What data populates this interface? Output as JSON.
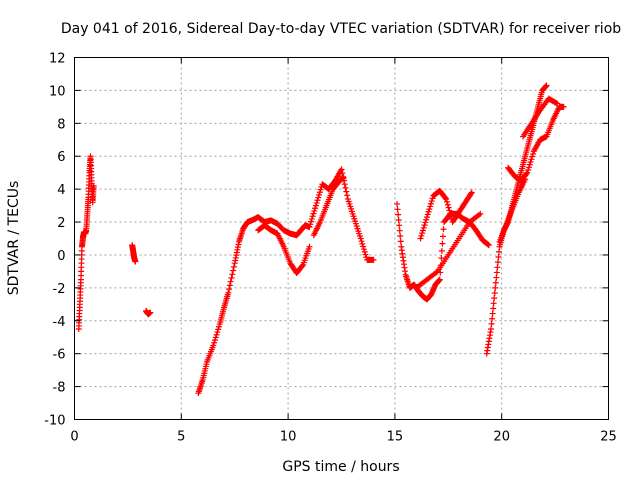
{
  "chart_data": {
    "type": "scatter",
    "title": "Day 041 of 2016, Sidereal Day-to-day VTEC variation (SDTVAR) for receiver riob",
    "xlabel": "GPS time / hours",
    "ylabel": "SDTVAR / TECUs",
    "xlim": [
      0,
      25
    ],
    "ylim": [
      -10,
      12
    ],
    "xticks": [
      0,
      5,
      10,
      15,
      20,
      25
    ],
    "yticks": [
      -10,
      -8,
      -6,
      -4,
      -2,
      0,
      2,
      4,
      6,
      8,
      10,
      12
    ],
    "xtick_labels": [
      "0",
      "5",
      "10",
      "15",
      "20",
      "25"
    ],
    "ytick_labels": [
      "-10",
      "-8",
      "-6",
      "-4",
      "-2",
      "0",
      "2",
      "4",
      "6",
      "8",
      "10",
      "12"
    ],
    "grid": true,
    "legend": "none",
    "marker": "+",
    "color": "#ff0000",
    "series": [
      {
        "x": [
          0.2,
          0.25,
          0.3,
          0.35,
          0.4,
          0.45,
          0.5,
          0.55,
          0.6,
          0.65,
          0.7,
          0.75,
          0.8,
          0.85,
          0.9
        ],
        "y": [
          -4.5,
          -3.0,
          -1.5,
          0.5,
          1.1,
          1.4,
          1.3,
          1.5,
          2.5,
          3.5,
          5.0,
          6.0,
          4.5,
          3.2,
          4.2
        ]
      },
      {
        "x": [
          2.7,
          2.75,
          2.8,
          2.85
        ],
        "y": [
          0.6,
          0.2,
          -0.2,
          -0.4
        ]
      },
      {
        "x": [
          3.35,
          3.45,
          3.55
        ],
        "y": [
          -3.4,
          -3.6,
          -3.5
        ]
      },
      {
        "x": [
          5.8,
          6.0,
          6.2,
          6.5,
          6.8,
          7.0,
          7.2,
          7.5,
          7.7,
          7.9,
          8.1,
          8.3,
          8.6,
          8.9,
          9.2,
          9.5,
          9.8,
          10.1,
          10.4,
          10.6,
          10.8,
          11.0,
          11.3,
          11.6,
          11.9,
          12.2,
          12.5,
          12.8,
          13.1,
          13.4,
          13.7,
          14.0
        ],
        "y": [
          -8.4,
          -7.6,
          -6.5,
          -5.5,
          -4.2,
          -3.2,
          -2.3,
          -0.5,
          0.8,
          1.6,
          2.0,
          2.1,
          2.3,
          2.0,
          2.1,
          1.9,
          1.5,
          1.3,
          1.2,
          1.5,
          1.8,
          1.7,
          3.0,
          4.3,
          4.0,
          4.5,
          5.2,
          3.4,
          2.2,
          1.0,
          -0.3,
          -0.3
        ]
      },
      {
        "x": [
          8.6,
          8.9,
          9.2,
          9.5,
          9.8,
          10.1,
          10.4,
          10.7,
          11.0
        ],
        "y": [
          1.5,
          1.8,
          1.5,
          1.3,
          0.5,
          -0.5,
          -1.1,
          -0.6,
          0.5
        ]
      },
      {
        "x": [
          11.2,
          11.5,
          11.8,
          12.1,
          12.4,
          12.6
        ],
        "y": [
          1.2,
          2.0,
          3.0,
          4.0,
          4.5,
          4.7
        ]
      },
      {
        "x": [
          15.1,
          15.3,
          15.5,
          15.7,
          15.9,
          16.1,
          16.3,
          16.5,
          16.7,
          16.9,
          17.1,
          17.3,
          17.6,
          17.9,
          18.2,
          18.5,
          18.8,
          19.1,
          19.4
        ],
        "y": [
          3.1,
          0.5,
          -1.2,
          -2.0,
          -1.8,
          -2.2,
          -2.5,
          -2.7,
          -2.4,
          -1.8,
          -1.5,
          2.0,
          2.5,
          2.5,
          2.2,
          2.0,
          1.5,
          0.9,
          0.6
        ]
      },
      {
        "x": [
          16.2,
          16.5,
          16.8,
          17.1,
          17.4,
          17.7,
          18.0,
          18.3,
          18.6
        ],
        "y": [
          1.0,
          2.3,
          3.6,
          3.9,
          3.4,
          2.0,
          2.6,
          3.2,
          3.8
        ]
      },
      {
        "x": [
          16.0,
          16.5,
          17.0,
          17.5,
          18.0,
          18.5,
          19.0
        ],
        "y": [
          -2.0,
          -1.5,
          -1.0,
          0.0,
          1.0,
          2.0,
          2.5
        ]
      },
      {
        "x": [
          19.3,
          19.5,
          19.7,
          19.9,
          20.1,
          20.3,
          20.5,
          20.7,
          20.9,
          21.1,
          21.3,
          21.5,
          21.7,
          21.9,
          22.1
        ],
        "y": [
          -6.0,
          -4.5,
          -2.0,
          0.5,
          1.5,
          2.0,
          3.0,
          4.0,
          5.0,
          6.0,
          7.0,
          8.0,
          9.0,
          10.0,
          10.3
        ]
      },
      {
        "x": [
          20.3,
          20.6,
          20.9,
          21.2,
          21.5,
          21.8,
          22.1,
          22.4,
          22.7,
          22.9
        ],
        "y": [
          5.3,
          4.8,
          4.5,
          5.0,
          6.3,
          7.0,
          7.2,
          8.2,
          9.0,
          9.0
        ]
      },
      {
        "x": [
          21.0,
          21.4,
          21.8,
          22.2,
          22.6
        ],
        "y": [
          7.2,
          8.0,
          8.8,
          9.5,
          9.2
        ]
      },
      {
        "x": [
          19.9,
          20.2,
          20.5,
          20.8,
          21.1
        ],
        "y": [
          0.8,
          1.8,
          2.8,
          3.8,
          4.6
        ]
      }
    ]
  }
}
